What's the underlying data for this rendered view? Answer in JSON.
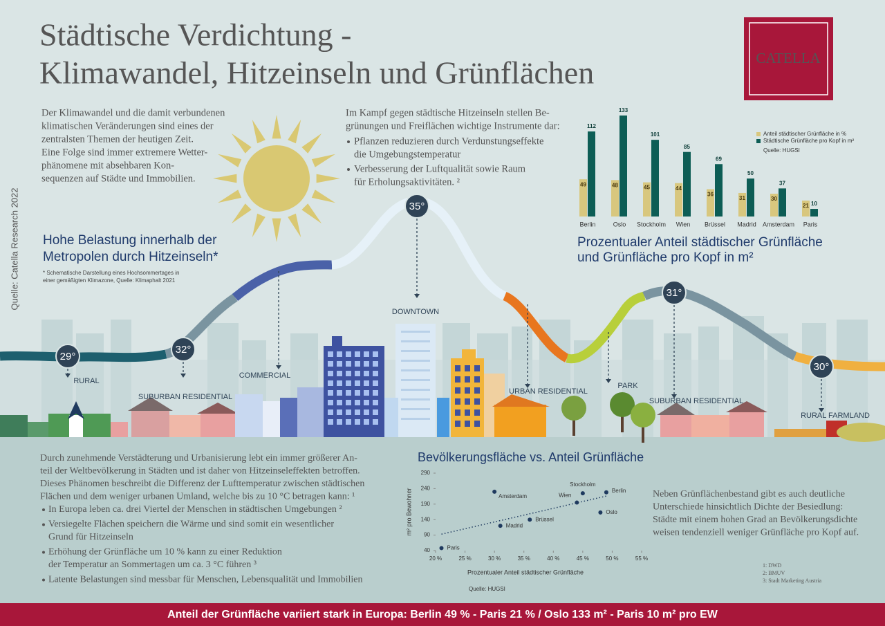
{
  "header": {
    "title": [
      "Städtische Verdichtung -",
      "Klimawandel, Hitzeinseln und Grünflächen"
    ],
    "logo": "CATELLA",
    "side_source": "Quelle: Catella Research 2022"
  },
  "intro_left": [
    "Der Klimawandel und die damit verbundenen",
    "klimatischen Veränderungen sind eines der",
    "zentralsten Themen der heutigen Zeit.",
    "Eine Folge sind immer extremere Wetter-",
    "phänomene mit absehbaren Kon-",
    "sequenzen auf Städte und Immobilien."
  ],
  "intro_middle": {
    "lines": [
      "Im Kampf gegen städtische Hitzeinseln stellen Be-",
      "grünungen und Freiflächen wichtige Instrumente dar:"
    ],
    "bullets": [
      [
        "Pflanzen reduzieren durch Verdunstungseffekte",
        "die Umgebungstemperatur"
      ],
      [
        "Verbesserung der Luftqualität sowie Raum",
        "für Erholungsaktivitäten. ²"
      ]
    ]
  },
  "heat_island": {
    "title": [
      "Hohe Belastung innerhalb der",
      "Metropolen durch Hitzeinseln*"
    ],
    "note": [
      "* Schematische Darstellung eines Hochsommertages in",
      "einer gemäßigten Klimazone, Quelle: Klimaphalt 2021"
    ],
    "zones": [
      {
        "label": "RURAL",
        "temperature": "29°"
      },
      {
        "label": "SUBURBAN RESIDENTIAL",
        "temperature": "32°"
      },
      {
        "label": "COMMERCIAL"
      },
      {
        "label": "DOWNTOWN",
        "temperature": "35°"
      },
      {
        "label": "URBAN RESIDENTIAL"
      },
      {
        "label": "PARK"
      },
      {
        "label": "SUBURBAN RESIDENTIAL",
        "temperature": "31°"
      },
      {
        "label": "RURAL FARMLAND",
        "temperature": "30°"
      }
    ]
  },
  "chart_data": [
    {
      "type": "bar",
      "title": [
        "Prozentualer Anteil städtischer Grünfläche",
        "und Grünfläche pro Kopf in m²"
      ],
      "source": "Quelle: HUGSI",
      "categories": [
        "Berlin",
        "Oslo",
        "Stockholm",
        "Wien",
        "Brüssel",
        "Madrid",
        "Amsterdam",
        "Paris"
      ],
      "series": [
        {
          "name": "Anteil städtischer Grünfläche in %",
          "color": "#d8c77e",
          "values": [
            49,
            48,
            45,
            44,
            36,
            31,
            30,
            21
          ]
        },
        {
          "name": "Städtische Grünfläche pro Kopf in m²",
          "color": "#0d5d55",
          "values": [
            112,
            133,
            101,
            85,
            69,
            50,
            37,
            10
          ]
        }
      ]
    },
    {
      "type": "scatter",
      "title": "Bevölkerungsfläche vs. Anteil Grünfläche",
      "x_label": "Prozentualer Anteil städtischer Grünfläche",
      "y_label": "m² pro Bewohner",
      "source": "Quelle: HUGSI",
      "color": "#1f3a5f",
      "categories": [
        "Berlin",
        "Oslo",
        "Stockholm",
        "Wien",
        "Brüssel",
        "Madrid",
        "Amsterdam",
        "Paris"
      ],
      "x": [
        49,
        48,
        45,
        44,
        36,
        31,
        30,
        21
      ],
      "values": [
        228,
        163,
        225,
        195,
        140,
        120,
        230,
        48
      ],
      "trend": {
        "x": [
          21,
          49
        ],
        "y": [
          93,
          216
        ]
      },
      "xlim": [
        20,
        55
      ],
      "xticks": [
        {
          "value": 20,
          "label": "20 %"
        },
        {
          "value": 25,
          "label": "25 %"
        },
        {
          "value": 30,
          "label": "30 %"
        },
        {
          "value": 35,
          "label": "35 %"
        },
        {
          "value": 40,
          "label": "40 %"
        },
        {
          "value": 45,
          "label": "45 %"
        },
        {
          "value": 50,
          "label": "50 %"
        },
        {
          "value": 55,
          "label": "55 %"
        }
      ],
      "ylim": [
        40,
        290
      ],
      "yticks": [
        40,
        90,
        140,
        190,
        240,
        290
      ]
    }
  ],
  "density_text": [
    "Neben Grünflächenbestand gibt es auch deutliche",
    "Unterschiede hinsichtlich Dichte der Besiedlung:",
    "Städte mit einem hohen Grad an Bevölkerungsdichte",
    "weisen tendenziell weniger Grünfläche pro Kopf auf."
  ],
  "urbanization": {
    "lines": [
      "Durch zunehmende Verstädterung und Urbanisierung lebt ein immer größerer An-",
      "teil der Weltbevölkerung in Städten und ist daher von Hitzeinseleffekten betroffen.",
      "Dieses Phänomen beschreibt die Differenz der Lufttemperatur zwischen städtischen",
      "Flächen und dem weniger urbanen Umland, welche bis zu 10 °C betragen kann: ¹"
    ],
    "bullets": [
      [
        "In Europa leben ca. drei Viertel der Menschen in städtischen Umgebungen ²"
      ],
      [
        "Versiegelte Flächen speichern die Wärme und sind somit ein wesentlicher",
        "Grund für Hitzeinseln"
      ],
      [
        "Erhöhung der Grünfläche um 10 % kann zu einer Reduktion",
        "der Temperatur an Sommertagen um ca. 3 °C führen ³"
      ],
      [
        "Latente Belastungen sind messbar für Menschen, Lebensqualität und Immobilien"
      ]
    ]
  },
  "footnotes": [
    "1: DWD",
    "2: BMUV",
    "3: Stadt Marketing Austria"
  ],
  "footer": "Anteil der Grünfläche variiert stark in Europa: Berlin 49 % - Paris 21 % / Oslo 133 m² - Paris 10 m² pro EW"
}
